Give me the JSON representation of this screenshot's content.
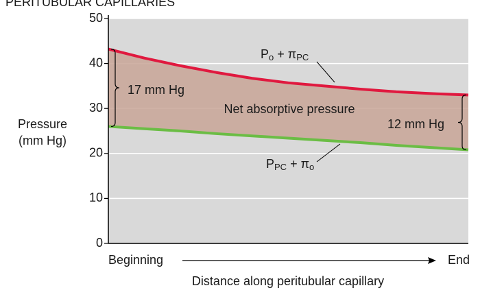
{
  "chart_data": {
    "type": "line",
    "title": "PERITUBULAR CAPILLARIES",
    "ylabel": [
      "Pressure",
      "(mm Hg)"
    ],
    "xlabel": "Distance along peritubular capillary",
    "x_start_label": "Beginning",
    "x_end_label": "End",
    "x": [
      0,
      0.1,
      0.2,
      0.3,
      0.4,
      0.5,
      0.6,
      0.7,
      0.8,
      0.9,
      1
    ],
    "xlim": [
      0,
      1
    ],
    "ylim": [
      0,
      50
    ],
    "yticks": [
      0,
      10,
      20,
      30,
      40,
      50
    ],
    "grid": true,
    "series": [
      {
        "label": [
          "P",
          "o",
          " + π",
          "PC"
        ],
        "color": "#e0193f",
        "values": [
          43.2,
          41.2,
          39.5,
          38.0,
          36.7,
          35.7,
          35.0,
          34.3,
          33.7,
          33.3,
          33.0
        ]
      },
      {
        "label": [
          "P",
          "PC",
          " + π",
          "o"
        ],
        "color": "#6bbd45",
        "values": [
          26.0,
          25.5,
          25.0,
          24.4,
          23.9,
          23.4,
          22.9,
          22.4,
          21.8,
          21.3,
          20.8
        ]
      }
    ],
    "fill_color": "#c8a596",
    "annotations": [
      "17 mm Hg",
      "Net absorptive pressure",
      "12 mm Hg"
    ]
  }
}
